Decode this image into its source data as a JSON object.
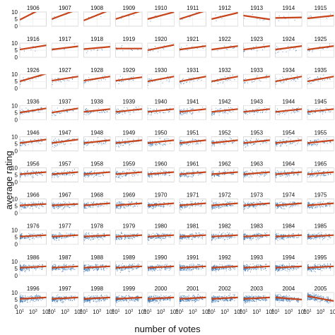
{
  "chart_data": {
    "type": "scatter",
    "layout": "small-multiples grid, 10 rows x 10 columns, one panel per year",
    "xlabel": "number of votes",
    "ylabel": "average rating",
    "x_scale": "log",
    "xlim": [
      10,
      100000
    ],
    "xticks": [
      10,
      1000,
      100000
    ],
    "xtick_labels": [
      {
        "base": "10",
        "exp": "1"
      },
      {
        "base": "10",
        "exp": "3"
      },
      {
        "base": "10",
        "exp": "5"
      }
    ],
    "ylim": [
      0,
      10
    ],
    "yticks": [
      0,
      5,
      10
    ],
    "ytick_labels": [
      "0",
      "5",
      "10"
    ],
    "grid": true,
    "point_color": "#2b6cb0",
    "fit_line_color": "#c8441a",
    "panels": [
      {
        "year": "1906",
        "n": 2,
        "fit": [
          4.5,
          14.0
        ]
      },
      {
        "year": "1907",
        "n": 3,
        "fit": [
          5.0,
          12.0
        ]
      },
      {
        "year": "1908",
        "n": 3,
        "fit": [
          4.0,
          11.5
        ]
      },
      {
        "year": "1909",
        "n": 4,
        "fit": [
          5.0,
          11.0
        ]
      },
      {
        "year": "1910",
        "n": 5,
        "fit": [
          5.0,
          10.0
        ]
      },
      {
        "year": "1911",
        "n": 6,
        "fit": [
          5.0,
          11.0
        ]
      },
      {
        "year": "1912",
        "n": 6,
        "fit": [
          5.0,
          9.5
        ]
      },
      {
        "year": "1913",
        "n": 6,
        "fit": [
          7.5,
          4.8
        ]
      },
      {
        "year": "1914",
        "n": 8,
        "fit": [
          5.8,
          6.2
        ]
      },
      {
        "year": "1915",
        "n": 8,
        "fit": [
          5.5,
          7.5
        ]
      },
      {
        "year": "1916",
        "n": 8,
        "fit": [
          5.5,
          8.5
        ]
      },
      {
        "year": "1917",
        "n": 10,
        "fit": [
          5.5,
          7.8
        ]
      },
      {
        "year": "1918",
        "n": 10,
        "fit": [
          5.8,
          7.5
        ]
      },
      {
        "year": "1919",
        "n": 12,
        "fit": [
          6.2,
          6.2
        ]
      },
      {
        "year": "1920",
        "n": 14,
        "fit": [
          5.0,
          8.8
        ]
      },
      {
        "year": "1921",
        "n": 16,
        "fit": [
          5.5,
          8.0
        ]
      },
      {
        "year": "1922",
        "n": 16,
        "fit": [
          5.5,
          8.0
        ]
      },
      {
        "year": "1923",
        "n": 18,
        "fit": [
          5.5,
          8.0
        ]
      },
      {
        "year": "1924",
        "n": 20,
        "fit": [
          5.5,
          8.0
        ]
      },
      {
        "year": "1925",
        "n": 20,
        "fit": [
          5.5,
          8.0
        ]
      },
      {
        "year": "1926",
        "n": 22,
        "fit": [
          5.0,
          10.5
        ]
      },
      {
        "year": "1927",
        "n": 24,
        "fit": [
          5.5,
          8.5
        ]
      },
      {
        "year": "1928",
        "n": 24,
        "fit": [
          5.5,
          8.5
        ]
      },
      {
        "year": "1929",
        "n": 28,
        "fit": [
          5.5,
          8.0
        ]
      },
      {
        "year": "1930",
        "n": 32,
        "fit": [
          5.0,
          8.5
        ]
      },
      {
        "year": "1931",
        "n": 34,
        "fit": [
          5.0,
          8.5
        ]
      },
      {
        "year": "1932",
        "n": 36,
        "fit": [
          5.0,
          8.5
        ]
      },
      {
        "year": "1933",
        "n": 38,
        "fit": [
          5.5,
          8.5
        ]
      },
      {
        "year": "1934",
        "n": 40,
        "fit": [
          5.0,
          8.5
        ]
      },
      {
        "year": "1935",
        "n": 42,
        "fit": [
          5.0,
          8.5
        ]
      },
      {
        "year": "1936",
        "n": 44,
        "fit": [
          5.0,
          8.0
        ]
      },
      {
        "year": "1937",
        "n": 46,
        "fit": [
          5.0,
          8.0
        ]
      },
      {
        "year": "1938",
        "n": 48,
        "fit": [
          5.5,
          7.5
        ]
      },
      {
        "year": "1939",
        "n": 50,
        "fit": [
          5.5,
          7.5
        ]
      },
      {
        "year": "1940",
        "n": 52,
        "fit": [
          5.5,
          7.5
        ]
      },
      {
        "year": "1941",
        "n": 54,
        "fit": [
          5.5,
          7.5
        ]
      },
      {
        "year": "1942",
        "n": 56,
        "fit": [
          5.5,
          7.5
        ]
      },
      {
        "year": "1943",
        "n": 58,
        "fit": [
          5.5,
          7.5
        ]
      },
      {
        "year": "1944",
        "n": 60,
        "fit": [
          5.5,
          7.5
        ]
      },
      {
        "year": "1945",
        "n": 62,
        "fit": [
          5.5,
          7.5
        ]
      },
      {
        "year": "1946",
        "n": 64,
        "fit": [
          5.5,
          8.0
        ]
      },
      {
        "year": "1947",
        "n": 66,
        "fit": [
          5.5,
          8.0
        ]
      },
      {
        "year": "1948",
        "n": 68,
        "fit": [
          5.5,
          7.5
        ]
      },
      {
        "year": "1949",
        "n": 70,
        "fit": [
          5.5,
          7.5
        ]
      },
      {
        "year": "1950",
        "n": 72,
        "fit": [
          5.5,
          7.5
        ]
      },
      {
        "year": "1951",
        "n": 74,
        "fit": [
          5.5,
          7.5
        ]
      },
      {
        "year": "1952",
        "n": 76,
        "fit": [
          5.5,
          7.5
        ]
      },
      {
        "year": "1953",
        "n": 78,
        "fit": [
          5.5,
          7.5
        ]
      },
      {
        "year": "1954",
        "n": 80,
        "fit": [
          5.5,
          7.5
        ]
      },
      {
        "year": "1955",
        "n": 82,
        "fit": [
          5.5,
          7.5
        ]
      },
      {
        "year": "1956",
        "n": 84,
        "fit": [
          5.5,
          7.0
        ]
      },
      {
        "year": "1957",
        "n": 86,
        "fit": [
          5.5,
          7.0
        ]
      },
      {
        "year": "1958",
        "n": 88,
        "fit": [
          5.5,
          7.0
        ]
      },
      {
        "year": "1959",
        "n": 90,
        "fit": [
          5.5,
          7.0
        ]
      },
      {
        "year": "1960",
        "n": 92,
        "fit": [
          5.5,
          7.0
        ]
      },
      {
        "year": "1961",
        "n": 94,
        "fit": [
          5.5,
          7.0
        ]
      },
      {
        "year": "1962",
        "n": 96,
        "fit": [
          5.5,
          7.0
        ]
      },
      {
        "year": "1963",
        "n": 98,
        "fit": [
          5.5,
          7.0
        ]
      },
      {
        "year": "1964",
        "n": 100,
        "fit": [
          5.5,
          7.0
        ]
      },
      {
        "year": "1965",
        "n": 102,
        "fit": [
          5.5,
          7.0
        ]
      },
      {
        "year": "1966",
        "n": 104,
        "fit": [
          5.5,
          6.5
        ]
      },
      {
        "year": "1967",
        "n": 106,
        "fit": [
          5.5,
          6.5
        ]
      },
      {
        "year": "1968",
        "n": 108,
        "fit": [
          5.5,
          7.0
        ]
      },
      {
        "year": "1969",
        "n": 110,
        "fit": [
          5.5,
          7.0
        ]
      },
      {
        "year": "1970",
        "n": 112,
        "fit": [
          5.5,
          7.0
        ]
      },
      {
        "year": "1971",
        "n": 114,
        "fit": [
          5.5,
          7.0
        ]
      },
      {
        "year": "1972",
        "n": 116,
        "fit": [
          5.5,
          7.0
        ]
      },
      {
        "year": "1973",
        "n": 118,
        "fit": [
          5.5,
          7.0
        ]
      },
      {
        "year": "1974",
        "n": 120,
        "fit": [
          5.5,
          7.0
        ]
      },
      {
        "year": "1975",
        "n": 122,
        "fit": [
          5.5,
          7.0
        ]
      },
      {
        "year": "1976",
        "n": 124,
        "fit": [
          5.5,
          6.5
        ]
      },
      {
        "year": "1977",
        "n": 126,
        "fit": [
          5.5,
          6.5
        ]
      },
      {
        "year": "1978",
        "n": 128,
        "fit": [
          5.5,
          6.5
        ]
      },
      {
        "year": "1979",
        "n": 130,
        "fit": [
          5.5,
          6.5
        ]
      },
      {
        "year": "1980",
        "n": 132,
        "fit": [
          5.5,
          6.5
        ]
      },
      {
        "year": "1981",
        "n": 134,
        "fit": [
          5.5,
          6.5
        ]
      },
      {
        "year": "1982",
        "n": 136,
        "fit": [
          5.5,
          6.5
        ]
      },
      {
        "year": "1983",
        "n": 138,
        "fit": [
          5.5,
          6.5
        ]
      },
      {
        "year": "1984",
        "n": 140,
        "fit": [
          5.5,
          6.5
        ]
      },
      {
        "year": "1985",
        "n": 142,
        "fit": [
          5.5,
          6.5
        ]
      },
      {
        "year": "1986",
        "n": 146,
        "fit": [
          5.5,
          6.5
        ]
      },
      {
        "year": "1987",
        "n": 150,
        "fit": [
          5.5,
          6.5
        ]
      },
      {
        "year": "1988",
        "n": 154,
        "fit": [
          5.5,
          6.5
        ]
      },
      {
        "year": "1989",
        "n": 158,
        "fit": [
          5.5,
          6.5
        ]
      },
      {
        "year": "1990",
        "n": 162,
        "fit": [
          5.5,
          6.5
        ]
      },
      {
        "year": "1991",
        "n": 166,
        "fit": [
          5.5,
          6.5
        ]
      },
      {
        "year": "1992",
        "n": 170,
        "fit": [
          5.5,
          6.5
        ]
      },
      {
        "year": "1993",
        "n": 174,
        "fit": [
          5.5,
          6.5
        ]
      },
      {
        "year": "1994",
        "n": 178,
        "fit": [
          5.5,
          6.5
        ]
      },
      {
        "year": "1995",
        "n": 182,
        "fit": [
          5.5,
          6.5
        ]
      },
      {
        "year": "1996",
        "n": 186,
        "fit": [
          5.5,
          6.5
        ]
      },
      {
        "year": "1997",
        "n": 190,
        "fit": [
          5.5,
          6.5
        ]
      },
      {
        "year": "1998",
        "n": 194,
        "fit": [
          5.5,
          6.5
        ]
      },
      {
        "year": "1999",
        "n": 198,
        "fit": [
          5.5,
          6.5
        ]
      },
      {
        "year": "2000",
        "n": 202,
        "fit": [
          5.5,
          6.5
        ]
      },
      {
        "year": "2001",
        "n": 206,
        "fit": [
          5.5,
          6.5
        ]
      },
      {
        "year": "2002",
        "n": 210,
        "fit": [
          5.5,
          6.5
        ]
      },
      {
        "year": "2003",
        "n": 214,
        "fit": [
          5.5,
          6.5
        ]
      },
      {
        "year": "2004",
        "n": 218,
        "fit": [
          6.5,
          5.0
        ]
      },
      {
        "year": "2005",
        "n": 222,
        "fit": [
          7.5,
          4.0
        ]
      }
    ]
  }
}
